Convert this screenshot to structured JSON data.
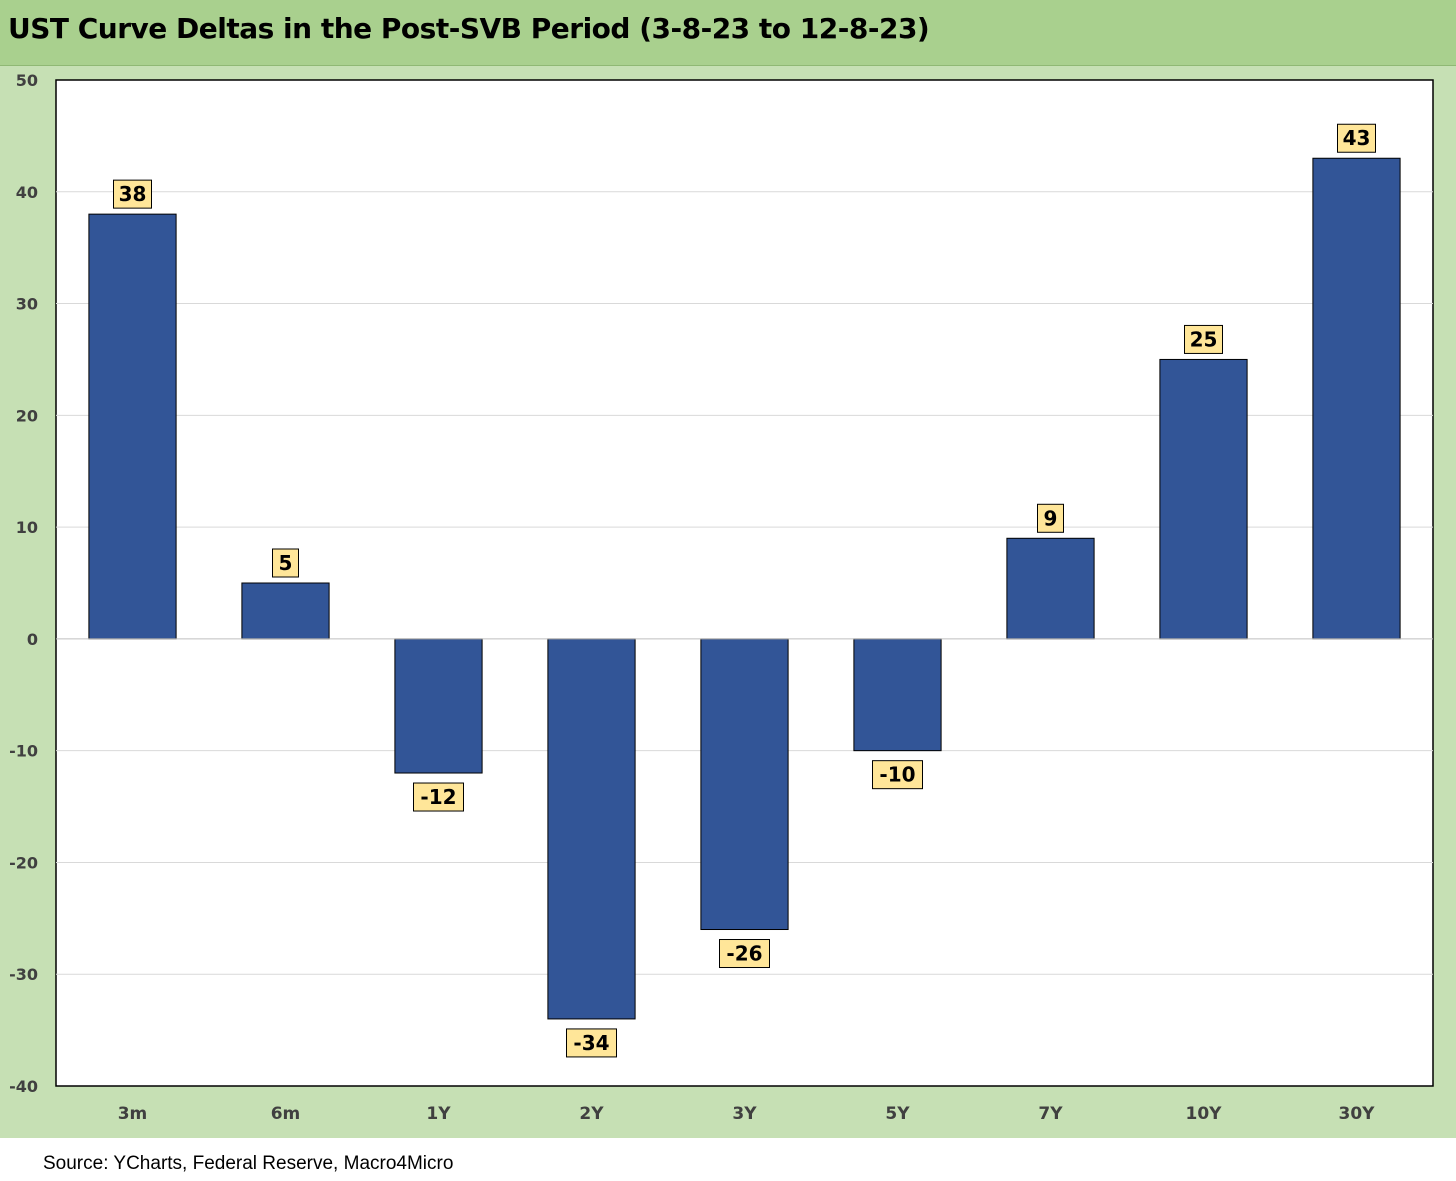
{
  "title": "UST Curve Deltas in the Post-SVB Period (3-8-23 to 12-8-23)",
  "source": "Source: YCharts, Federal Reserve, Macro4Micro",
  "colors": {
    "bar": "#325597",
    "label_bg": "#ffe699",
    "chart_bg": "#c6e0b4",
    "title_bg": "#a9d08e"
  },
  "chart_data": {
    "type": "bar",
    "title": "UST Curve Deltas in the Post-SVB Period (3-8-23 to 12-8-23)",
    "xlabel": "",
    "ylabel": "",
    "categories": [
      "3m",
      "6m",
      "1Y",
      "2Y",
      "3Y",
      "5Y",
      "7Y",
      "10Y",
      "30Y"
    ],
    "values": [
      38,
      5,
      -12,
      -34,
      -26,
      -10,
      9,
      25,
      43
    ],
    "ylim": [
      -40,
      50
    ],
    "yticks": [
      50,
      40,
      30,
      20,
      10,
      0,
      -10,
      -20,
      -30,
      -40
    ],
    "grid": true,
    "legend": "none"
  }
}
